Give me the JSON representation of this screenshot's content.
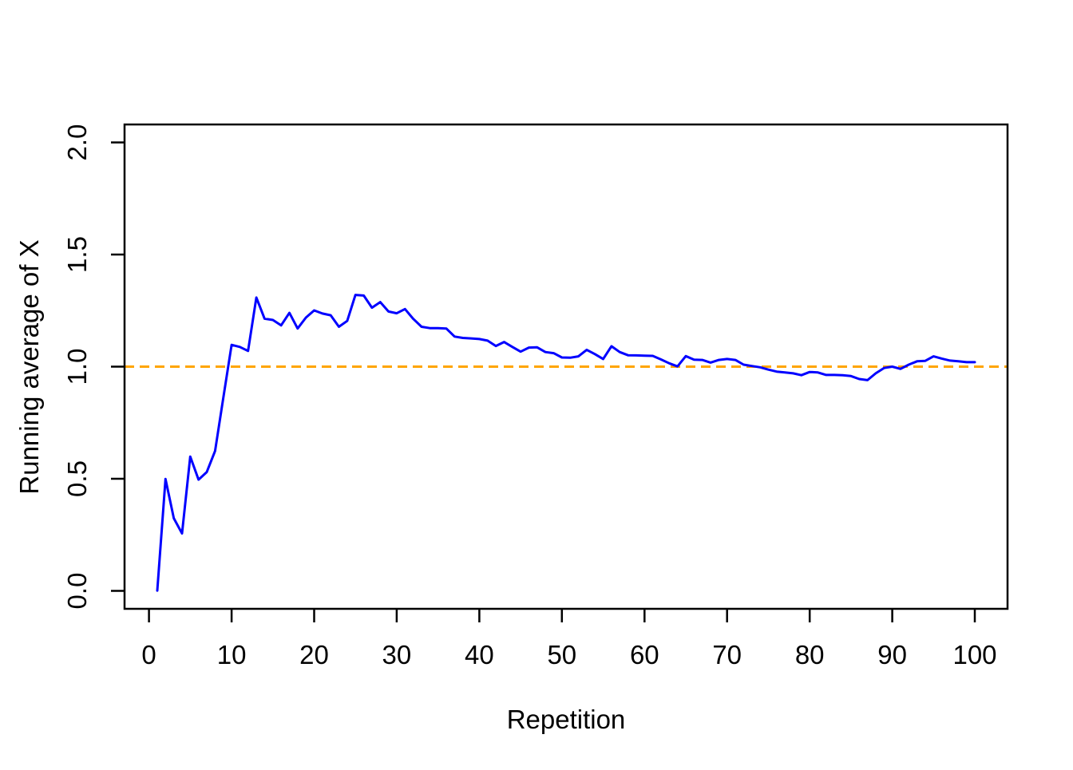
{
  "chart_data": {
    "type": "line",
    "title": "",
    "xlabel": "Repetition",
    "ylabel": "Running average of X",
    "x_ticks": [
      0,
      10,
      20,
      30,
      40,
      50,
      60,
      70,
      80,
      90,
      100
    ],
    "y_ticks": [
      "0.0",
      "0.5",
      "1.0",
      "1.5",
      "2.0"
    ],
    "xlim": [
      -2.96,
      103.96
    ],
    "ylim": [
      -0.08,
      2.08
    ],
    "grid": false,
    "legend": "none",
    "series": [
      {
        "name": "running-average",
        "color": "#0000ff",
        "style": "solid",
        "x": [
          1,
          2,
          3,
          4,
          5,
          6,
          7,
          8,
          9,
          10,
          11,
          12,
          13,
          14,
          15,
          16,
          17,
          18,
          19,
          20,
          21,
          22,
          23,
          24,
          25,
          26,
          27,
          28,
          29,
          30,
          31,
          32,
          33,
          34,
          35,
          36,
          37,
          38,
          39,
          40,
          41,
          42,
          43,
          44,
          45,
          46,
          47,
          48,
          49,
          50,
          51,
          52,
          53,
          54,
          55,
          56,
          57,
          58,
          59,
          60,
          61,
          62,
          63,
          64,
          65,
          66,
          67,
          68,
          69,
          70,
          71,
          72,
          73,
          74,
          75,
          76,
          77,
          78,
          79,
          80,
          81,
          82,
          83,
          84,
          85,
          86,
          87,
          88,
          89,
          90,
          91,
          92,
          93,
          94,
          95,
          96,
          97,
          98,
          99,
          100
        ],
        "y": [
          0.001,
          0.499,
          0.324,
          0.256,
          0.599,
          0.496,
          0.53,
          0.624,
          0.861,
          1.097,
          1.088,
          1.07,
          1.308,
          1.214,
          1.208,
          1.184,
          1.24,
          1.17,
          1.219,
          1.251,
          1.237,
          1.229,
          1.178,
          1.204,
          1.32,
          1.317,
          1.263,
          1.288,
          1.246,
          1.238,
          1.257,
          1.213,
          1.178,
          1.172,
          1.172,
          1.17,
          1.134,
          1.128,
          1.126,
          1.123,
          1.116,
          1.092,
          1.11,
          1.088,
          1.067,
          1.085,
          1.086,
          1.065,
          1.06,
          1.041,
          1.04,
          1.046,
          1.075,
          1.056,
          1.034,
          1.091,
          1.065,
          1.051,
          1.05,
          1.049,
          1.048,
          1.032,
          1.015,
          1.001,
          1.047,
          1.031,
          1.03,
          1.018,
          1.03,
          1.034,
          1.03,
          1.009,
          1.003,
          0.997,
          0.987,
          0.978,
          0.974,
          0.97,
          0.962,
          0.976,
          0.974,
          0.963,
          0.963,
          0.962,
          0.958,
          0.945,
          0.94,
          0.97,
          0.994,
          1.0,
          0.99,
          1.009,
          1.024,
          1.026,
          1.046,
          1.036,
          1.027,
          1.024,
          1.02,
          1.02
        ]
      },
      {
        "name": "reference-line",
        "color": "#ffa500",
        "style": "dashed",
        "y_value": 1.0
      }
    ]
  },
  "colors": {
    "background": "#ffffff",
    "axis": "#000000",
    "data_line": "#0000ff",
    "reference_line": "#ffa500"
  }
}
